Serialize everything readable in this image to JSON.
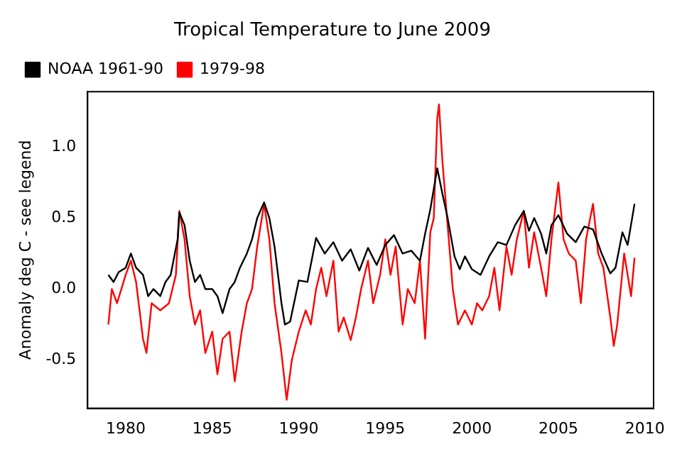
{
  "chart_data": {
    "type": "line",
    "title": "Tropical Temperature to June 2009",
    "ylabel": "Anomaly deg C - see legend",
    "xlim": [
      1977.8,
      2010.5
    ],
    "xticks": [
      1980,
      1985,
      1990,
      1995,
      2000,
      2005,
      2010
    ],
    "ylim": [
      -0.84,
      1.39
    ],
    "yticks": [
      {
        "value": -0.5,
        "label": "-0.5"
      },
      {
        "value": 0,
        "label": "0.0"
      },
      {
        "value": 0.5,
        "label": "0.5"
      },
      {
        "value": 1,
        "label": "1.0"
      }
    ],
    "grid": false,
    "legend": "top left",
    "marker": "none",
    "line_style": "solid",
    "series": [
      {
        "name": "NOAA 1961-90",
        "color": "#000000",
        "x": [
          1979,
          1979.3,
          1979.6,
          1980,
          1980.3,
          1980.6,
          1981,
          1981.3,
          1981.6,
          1982,
          1982.3,
          1982.6,
          1983,
          1983.1,
          1983.4,
          1983.7,
          1984,
          1984.3,
          1984.6,
          1985,
          1985.3,
          1985.6,
          1986,
          1986.3,
          1986.6,
          1987,
          1987.3,
          1987.6,
          1988,
          1988.3,
          1988.6,
          1989,
          1989.2,
          1989.5,
          1990,
          1990.5,
          1991,
          1991.5,
          1992,
          1992.5,
          1993,
          1993.5,
          1994,
          1994.5,
          1995,
          1995.5,
          1996,
          1996.5,
          1997,
          1997.3,
          1997.6,
          1998,
          1998.3,
          1998.6,
          1999,
          1999.3,
          1999.6,
          2000,
          2000.5,
          2001,
          2001.5,
          2002,
          2002.5,
          2003,
          2003.3,
          2003.6,
          2004,
          2004.3,
          2004.6,
          2005,
          2005.5,
          2006,
          2006.5,
          2007,
          2007.5,
          2008,
          2008.3,
          2008.7,
          2009,
          2009.4
        ],
        "values": [
          0.1,
          0.05,
          0.12,
          0.15,
          0.25,
          0.15,
          0.1,
          -0.05,
          0,
          -0.05,
          0.05,
          0.1,
          0.35,
          0.54,
          0.45,
          0.2,
          0.05,
          0.1,
          0,
          0,
          -0.05,
          -0.17,
          0,
          0.05,
          0.15,
          0.25,
          0.35,
          0.5,
          0.61,
          0.5,
          0.3,
          -0.1,
          -0.25,
          -0.23,
          0.06,
          0.05,
          0.36,
          0.25,
          0.33,
          0.2,
          0.28,
          0.13,
          0.29,
          0.17,
          0.31,
          0.38,
          0.25,
          0.27,
          0.2,
          0.39,
          0.56,
          0.85,
          0.67,
          0.5,
          0.23,
          0.14,
          0.23,
          0.14,
          0.1,
          0.23,
          0.33,
          0.31,
          0.45,
          0.55,
          0.41,
          0.5,
          0.39,
          0.25,
          0.45,
          0.52,
          0.39,
          0.33,
          0.44,
          0.42,
          0.25,
          0.11,
          0.15,
          0.4,
          0.31,
          0.6
        ]
      },
      {
        "name": "1979-98",
        "color": "#ff0000",
        "x": [
          1979,
          1979.2,
          1979.5,
          1980,
          1980.3,
          1980.6,
          1981,
          1981.2,
          1981.5,
          1982,
          1982.5,
          1982.9,
          1983.1,
          1983.4,
          1983.7,
          1984,
          1984.3,
          1984.6,
          1985,
          1985.3,
          1985.6,
          1986,
          1986.3,
          1986.7,
          1987,
          1987.3,
          1987.6,
          1988,
          1988.3,
          1988.6,
          1989,
          1989.3,
          1989.6,
          1990,
          1990.4,
          1990.7,
          1991,
          1991.3,
          1991.6,
          1992,
          1992.3,
          1992.6,
          1993,
          1993.3,
          1993.6,
          1994,
          1994.3,
          1994.7,
          1995,
          1995.3,
          1995.6,
          1996,
          1996.3,
          1996.7,
          1997,
          1997.3,
          1997.6,
          1997.8,
          1998,
          1998.1,
          1998.3,
          1998.6,
          1998.9,
          1999.2,
          1999.6,
          2000,
          2000.3,
          2000.6,
          2001,
          2001.3,
          2001.6,
          2002,
          2002.3,
          2002.6,
          2003,
          2003.3,
          2003.6,
          2004,
          2004.3,
          2004.6,
          2005,
          2005.3,
          2005.6,
          2006,
          2006.3,
          2006.6,
          2007,
          2007.3,
          2007.6,
          2008,
          2008.2,
          2008.4,
          2008.8,
          2009,
          2009.2,
          2009.4
        ],
        "values": [
          -0.25,
          0,
          -0.1,
          0.1,
          0.2,
          0.05,
          -0.35,
          -0.45,
          -0.1,
          -0.15,
          -0.1,
          0.1,
          0.55,
          0.35,
          -0.05,
          -0.25,
          -0.15,
          -0.45,
          -0.3,
          -0.6,
          -0.35,
          -0.3,
          -0.65,
          -0.3,
          -0.1,
          0,
          0.3,
          0.6,
          0.35,
          -0.1,
          -0.45,
          -0.78,
          -0.5,
          -0.3,
          -0.15,
          -0.25,
          0,
          0.15,
          -0.05,
          0.2,
          -0.3,
          -0.2,
          -0.36,
          -0.2,
          0,
          0.2,
          -0.1,
          0.1,
          0.35,
          0.1,
          0.3,
          -0.25,
          0,
          -0.1,
          0.2,
          -0.35,
          0.4,
          0.5,
          1.2,
          1.3,
          0.9,
          0.45,
          0,
          -0.25,
          -0.15,
          -0.25,
          -0.1,
          -0.15,
          -0.05,
          0.15,
          -0.15,
          0.3,
          0.1,
          0.35,
          0.55,
          0.15,
          0.4,
          0.15,
          -0.05,
          0.35,
          0.75,
          0.35,
          0.25,
          0.2,
          -0.1,
          0.35,
          0.6,
          0.25,
          0.15,
          -0.2,
          -0.4,
          -0.25,
          0.25,
          0.1,
          -0.05,
          0.22
        ]
      }
    ]
  }
}
